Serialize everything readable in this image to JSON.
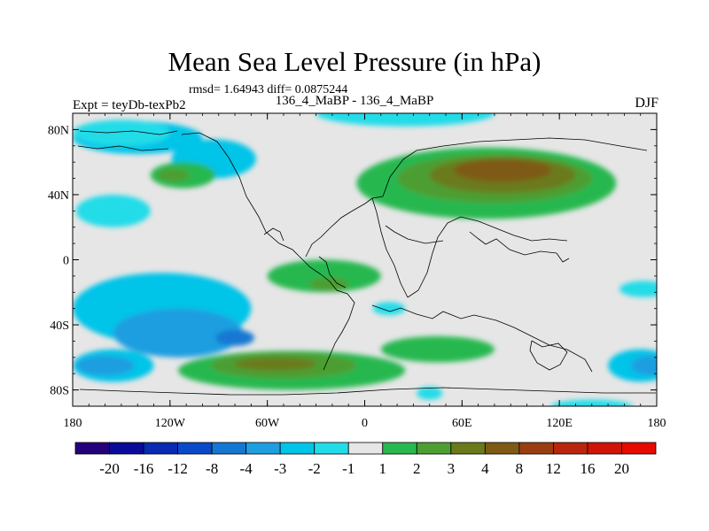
{
  "chart_data": {
    "type": "filled-contour-map",
    "title": "Mean Sea Level Pressure (in hPa)",
    "stats": "rmsd= 1.64943 diff= 0.0875244",
    "left_label": "Expt = teyDb-texPb2",
    "center_label": "136_4_MaBP - 136_4_MaBP",
    "right_label": "DJF",
    "x_axis": {
      "lim": [
        -180,
        180
      ],
      "ticks": [
        {
          "value": -180,
          "label": "180"
        },
        {
          "value": -120,
          "label": "120W"
        },
        {
          "value": -60,
          "label": "60W"
        },
        {
          "value": 0,
          "label": "0"
        },
        {
          "value": 60,
          "label": "60E"
        },
        {
          "value": 120,
          "label": "120E"
        },
        {
          "value": 180,
          "label": "180"
        }
      ]
    },
    "y_axis": {
      "lim": [
        -90,
        90
      ],
      "ticks": [
        {
          "value": 80,
          "label": "80N"
        },
        {
          "value": 40,
          "label": "40N"
        },
        {
          "value": 0,
          "label": "0"
        },
        {
          "value": -40,
          "label": "40S"
        },
        {
          "value": -80,
          "label": "80S"
        }
      ]
    },
    "colorbar": {
      "labels": [
        "-20",
        "-16",
        "-12",
        "-8",
        "-4",
        "-3",
        "-2",
        "-1",
        "1",
        "2",
        "3",
        "4",
        "8",
        "12",
        "16",
        "20"
      ],
      "colors": [
        "#24007a",
        "#0a0a9a",
        "#0a2ab2",
        "#0a4ac8",
        "#1478d2",
        "#1e9ee0",
        "#00c4e8",
        "#22dce8",
        "#e6e6e6",
        "#28b850",
        "#4e9e32",
        "#6a7a1a",
        "#7e5a14",
        "#9a3e12",
        "#b8260e",
        "#d01408",
        "#e60a00"
      ]
    },
    "regions": [
      {
        "level": "-2",
        "lon": -140,
        "lat": 75,
        "lon_radius": 40,
        "lat_radius": 10
      },
      {
        "level": "-2",
        "lon": -93,
        "lat": 62,
        "lon_radius": 26,
        "lat_radius": 12
      },
      {
        "level": "-1",
        "lon": -155,
        "lat": 30,
        "lon_radius": 23,
        "lat_radius": 10
      },
      {
        "level": "-1",
        "lon": 25,
        "lat": 90,
        "lon_radius": 55,
        "lat_radius": 8
      },
      {
        "level": "-1",
        "lon": -150,
        "lat": 78,
        "lon_radius": 30,
        "lat_radius": 8
      },
      {
        "level": "-2",
        "lon": -125,
        "lat": -30,
        "lon_radius": 55,
        "lat_radius": 22
      },
      {
        "level": "-3",
        "lon": -115,
        "lat": -45,
        "lon_radius": 40,
        "lat_radius": 15
      },
      {
        "level": "-4",
        "lon": -80,
        "lat": -48,
        "lon_radius": 12,
        "lat_radius": 5
      },
      {
        "level": "-2",
        "lon": -155,
        "lat": -65,
        "lon_radius": 25,
        "lat_radius": 10
      },
      {
        "level": "-3",
        "lon": -160,
        "lat": -65,
        "lon_radius": 18,
        "lat_radius": 6
      },
      {
        "level": "-2",
        "lon": 170,
        "lat": -65,
        "lon_radius": 20,
        "lat_radius": 10
      },
      {
        "level": "-3",
        "lon": 176,
        "lat": -65,
        "lon_radius": 12,
        "lat_radius": 6
      },
      {
        "level": "-1",
        "lon": 172,
        "lat": -18,
        "lon_radius": 15,
        "lat_radius": 5
      },
      {
        "level": "-1",
        "lon": 15,
        "lat": -30,
        "lon_radius": 10,
        "lat_radius": 4
      },
      {
        "level": "-1",
        "lon": 40,
        "lat": -82,
        "lon_radius": 8,
        "lat_radius": 4
      },
      {
        "level": "-1",
        "lon": 140,
        "lat": -90,
        "lon_radius": 25,
        "lat_radius": 4
      },
      {
        "level": "1",
        "lon": -112,
        "lat": 52,
        "lon_radius": 20,
        "lat_radius": 8
      },
      {
        "level": "2",
        "lon": -118,
        "lat": 52,
        "lon_radius": 10,
        "lat_radius": 4
      },
      {
        "level": "1",
        "lon": 75,
        "lat": 47,
        "lon_radius": 80,
        "lat_radius": 22
      },
      {
        "level": "2",
        "lon": 80,
        "lat": 50,
        "lon_radius": 60,
        "lat_radius": 15
      },
      {
        "level": "3",
        "lon": 85,
        "lat": 52,
        "lon_radius": 45,
        "lat_radius": 11
      },
      {
        "level": "4",
        "lon": 85,
        "lat": 55,
        "lon_radius": 30,
        "lat_radius": 7
      },
      {
        "level": "1",
        "lon": -25,
        "lat": -10,
        "lon_radius": 35,
        "lat_radius": 10
      },
      {
        "level": "2",
        "lon": -22,
        "lat": -15,
        "lon_radius": 12,
        "lat_radius": 4
      },
      {
        "level": "1",
        "lon": -45,
        "lat": -68,
        "lon_radius": 70,
        "lat_radius": 12
      },
      {
        "level": "2",
        "lon": -50,
        "lat": -65,
        "lon_radius": 45,
        "lat_radius": 8
      },
      {
        "level": "3",
        "lon": -55,
        "lat": -64,
        "lon_radius": 25,
        "lat_radius": 4
      },
      {
        "level": "1",
        "lon": 45,
        "lat": -55,
        "lon_radius": 35,
        "lat_radius": 8
      }
    ]
  }
}
